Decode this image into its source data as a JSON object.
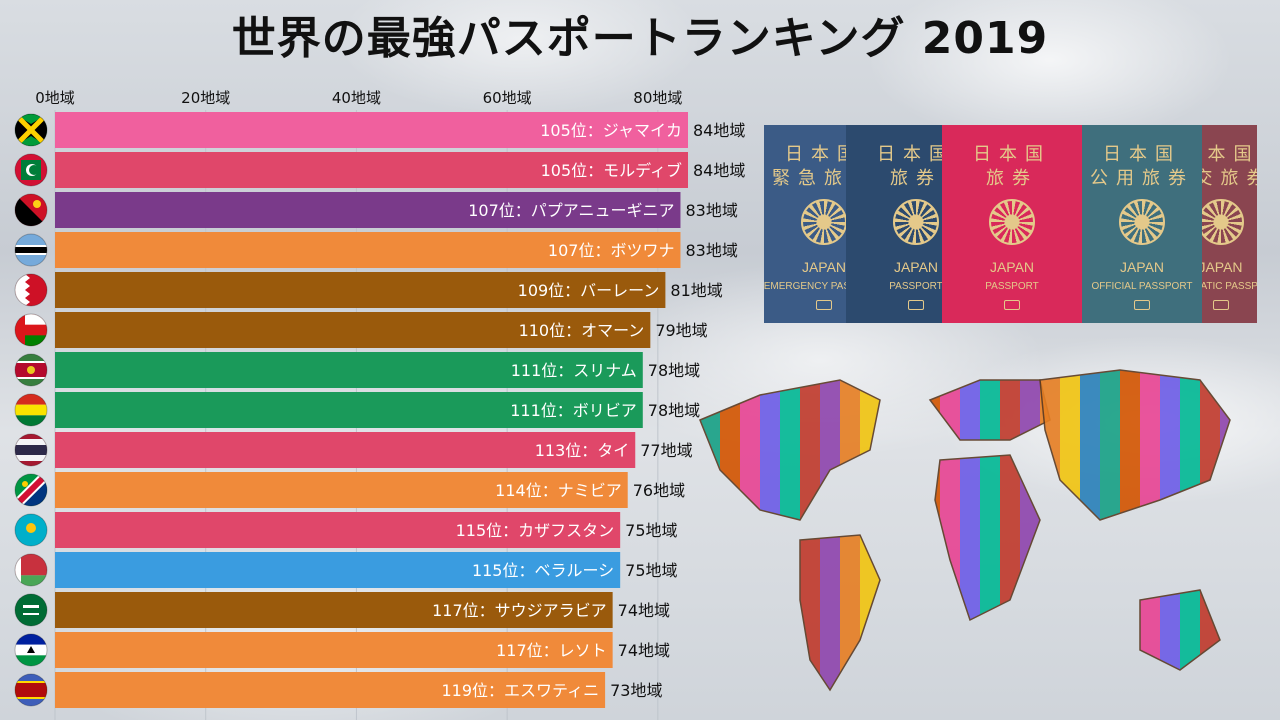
{
  "title": "世界の最強パスポートランキング 2019",
  "passports": [
    {
      "kanji": "日本国\n緊急旅券",
      "word": "JAPAN",
      "sub": "EMERGENCY PASSPORT",
      "color": "#3b5b86"
    },
    {
      "kanji": "日本国\n旅券",
      "word": "JAPAN",
      "sub": "PASSPORT",
      "color": "#2c4a6e"
    },
    {
      "kanji": "日本国\n旅券",
      "word": "JAPAN",
      "sub": "PASSPORT",
      "color": "#d9295a"
    },
    {
      "kanji": "日本国\n公用旅券",
      "word": "JAPAN",
      "sub": "OFFICIAL PASSPORT",
      "color": "#3f6f7d"
    },
    {
      "kanji": "日本国\n外交旅券",
      "word": "JAPAN",
      "sub": "DIPLOMATIC PASSPORT",
      "color": "#8a4550"
    }
  ],
  "chart_data": {
    "type": "bar",
    "orientation": "horizontal",
    "unit": "地域",
    "xlim": [
      0,
      84
    ],
    "ticks": [
      0,
      20,
      40,
      60,
      80
    ],
    "tick_labels": [
      "0地域",
      "20地域",
      "40地域",
      "60地域",
      "80地域"
    ],
    "grid": true,
    "bars": [
      {
        "label": "105位：ジャマイカ",
        "value": 84,
        "value_label": "84地域",
        "color": "#f0609e",
        "flag": "jamaica"
      },
      {
        "label": "105位：モルディブ",
        "value": 84,
        "value_label": "84地域",
        "color": "#e0476a",
        "flag": "maldives"
      },
      {
        "label": "107位：パプアニューギニア",
        "value": 83,
        "value_label": "83地域",
        "color": "#7a3a8a",
        "flag": "png"
      },
      {
        "label": "107位：ボツワナ",
        "value": 83,
        "value_label": "83地域",
        "color": "#f08a3a",
        "flag": "botswana"
      },
      {
        "label": "109位：バーレーン",
        "value": 81,
        "value_label": "81地域",
        "color": "#9a5a0c",
        "flag": "bahrain"
      },
      {
        "label": "110位：オマーン",
        "value": 79,
        "value_label": "79地域",
        "color": "#9a5a0c",
        "flag": "oman"
      },
      {
        "label": "111位：スリナム",
        "value": 78,
        "value_label": "78地域",
        "color": "#1a9a5a",
        "flag": "suriname"
      },
      {
        "label": "111位：ボリビア",
        "value": 78,
        "value_label": "78地域",
        "color": "#1a9a5a",
        "flag": "bolivia"
      },
      {
        "label": "113位：タイ",
        "value": 77,
        "value_label": "77地域",
        "color": "#e0476a",
        "flag": "thailand"
      },
      {
        "label": "114位：ナミビア",
        "value": 76,
        "value_label": "76地域",
        "color": "#f08a3a",
        "flag": "namibia"
      },
      {
        "label": "115位：カザフスタン",
        "value": 75,
        "value_label": "75地域",
        "color": "#e0476a",
        "flag": "kazakhstan"
      },
      {
        "label": "115位：ベラルーシ",
        "value": 75,
        "value_label": "75地域",
        "color": "#3a9ce0",
        "flag": "belarus"
      },
      {
        "label": "117位：サウジアラビア",
        "value": 74,
        "value_label": "74地域",
        "color": "#9a5a0c",
        "flag": "saudi"
      },
      {
        "label": "117位：レソト",
        "value": 74,
        "value_label": "74地域",
        "color": "#f08a3a",
        "flag": "lesotho"
      },
      {
        "label": "119位：エスワティニ",
        "value": 73,
        "value_label": "73地域",
        "color": "#f08a3a",
        "flag": "eswatini"
      }
    ]
  }
}
